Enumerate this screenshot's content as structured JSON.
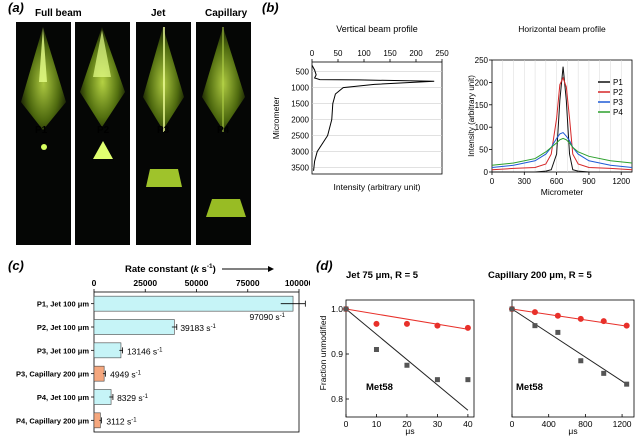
{
  "panel_a": {
    "letter": "(a)",
    "top_labels": [
      "Full beam",
      "Jet",
      "Capillary"
    ],
    "bottom_labels": [
      "P1",
      "P2",
      "P3",
      "P4"
    ]
  },
  "panel_b": {
    "letter": "(b)",
    "vertical": {
      "title": "Vertical beam profile",
      "xlabel": "Intensity (arbitrary unit)",
      "ylabel": "Micrometer",
      "xticks": [
        "0",
        "50",
        "100",
        "150",
        "200",
        "250"
      ],
      "yticks": [
        "0",
        "500",
        "1000",
        "1500",
        "2000",
        "2500",
        "3000",
        "3500"
      ]
    },
    "horizontal": {
      "title": "Horizontal beam profile",
      "xlabel": "Micrometer",
      "ylabel": "Intensity (arbitrary unit)",
      "xticks": [
        "0",
        "300",
        "600",
        "900",
        "1200"
      ],
      "yticks": [
        "0",
        "50",
        "100",
        "150",
        "200",
        "250"
      ],
      "legend": [
        "P1",
        "P2",
        "P3",
        "P4"
      ],
      "colors": [
        "#111111",
        "#d62728",
        "#1f5bd6",
        "#2ca02c"
      ]
    }
  },
  "panel_c": {
    "letter": "(c)",
    "axis_title_prefix": "Rate constant (",
    "axis_title_k": "k",
    "axis_title_unit": " s",
    "axis_title_sup": "-1",
    "axis_title_suffix": ")",
    "xticks": [
      "0",
      "25000",
      "50000",
      "75000",
      "100000"
    ]
  },
  "panel_d": {
    "letter": "(d)",
    "ylabel": "Fraction unmodified",
    "left": {
      "title": "Jet 75 μm, R = 5",
      "sample": "Met58",
      "xlabel": "μs",
      "xticks": [
        "0",
        "10",
        "20",
        "30",
        "40"
      ],
      "yticks": [
        "1.0",
        "0.9",
        "0.8"
      ]
    },
    "right": {
      "title": "Capillary 200 μm, R = 5",
      "sample": "Met58",
      "xlabel": "μs",
      "xticks": [
        "0",
        "400",
        "800",
        "1200"
      ],
      "yticks": [
        "1.0",
        "0.9",
        "0.8"
      ]
    }
  },
  "chart_data": [
    {
      "type": "bar",
      "orientation": "horizontal",
      "title": "Rate constant (k s-1)",
      "categories": [
        "P1, Jet 100 μm",
        "P2, Jet 100 μm",
        "P3, Jet 100 μm",
        "P3, Capillary 200 μm",
        "P4, Jet 100 μm",
        "P4, Capillary 200 μm"
      ],
      "values": [
        97090,
        39183,
        13146,
        4949,
        8329,
        3112
      ],
      "errors": [
        6000,
        1200,
        800,
        600,
        900,
        500
      ],
      "value_labels": [
        "97090 s",
        "39183 s",
        "13146 s",
        "4949 s",
        "8329 s",
        "3112 s"
      ],
      "value_label_sup": "-1",
      "colors": [
        "#c6f4f7",
        "#c6f4f7",
        "#c6f4f7",
        "#f5a77e",
        "#c6f4f7",
        "#f5a77e"
      ],
      "xlim": [
        0,
        100000
      ]
    },
    {
      "type": "line",
      "title": "Vertical beam profile",
      "x": [
        0,
        5,
        8,
        5,
        15,
        90,
        235,
        120,
        60,
        45,
        40,
        38,
        30,
        22,
        10,
        5,
        3
      ],
      "y": [
        300,
        450,
        600,
        700,
        750,
        760,
        800,
        900,
        1000,
        1200,
        1500,
        2000,
        2500,
        2700,
        3000,
        3300,
        3600
      ],
      "xlim": [
        0,
        250
      ],
      "ylim": [
        3700,
        200
      ]
    },
    {
      "type": "line",
      "title": "Horizontal beam profile",
      "x": [
        0,
        200,
        400,
        500,
        550,
        600,
        630,
        660,
        690,
        720,
        750,
        800,
        900,
        1100,
        1300
      ],
      "series": [
        {
          "name": "P1",
          "values": [
            0,
            0,
            0,
            2,
            5,
            40,
            160,
            235,
            160,
            40,
            5,
            2,
            0,
            0,
            0
          ]
        },
        {
          "name": "P2",
          "values": [
            5,
            8,
            10,
            18,
            40,
            120,
            195,
            210,
            190,
            120,
            40,
            18,
            10,
            8,
            5
          ]
        },
        {
          "name": "P3",
          "values": [
            10,
            15,
            25,
            40,
            55,
            75,
            85,
            88,
            80,
            70,
            55,
            40,
            25,
            15,
            10
          ]
        },
        {
          "name": "P4",
          "values": [
            15,
            20,
            30,
            45,
            55,
            65,
            72,
            75,
            72,
            65,
            55,
            45,
            35,
            25,
            20
          ]
        }
      ],
      "xlim": [
        0,
        1300
      ],
      "ylim": [
        0,
        250
      ]
    },
    {
      "type": "scatter",
      "title": "Jet 75 μm, R = 5",
      "series": [
        {
          "values_x": [
            0,
            10,
            20,
            30,
            40
          ],
          "values_y": [
            1.0,
            0.967,
            0.967,
            0.963,
            0.958
          ]
        },
        {
          "values_x": [
            0,
            10,
            20,
            30,
            40
          ],
          "values_y": [
            1.0,
            0.91,
            0.875,
            0.843,
            0.843
          ]
        }
      ],
      "fit_red": [
        [
          0,
          1.0
        ],
        [
          40,
          0.955
        ]
      ],
      "fit_black": [
        [
          0,
          1.0
        ],
        [
          40,
          0.775
        ]
      ],
      "xlim": [
        0,
        42
      ],
      "ylim": [
        0.76,
        1.02
      ]
    },
    {
      "type": "scatter",
      "title": "Capillary 200 μm, R = 5",
      "series": [
        {
          "values_x": [
            0,
            250,
            500,
            750,
            1000,
            1250
          ],
          "values_y": [
            1.0,
            0.993,
            0.985,
            0.978,
            0.973,
            0.963
          ]
        },
        {
          "values_x": [
            0,
            250,
            500,
            750,
            1000,
            1250
          ],
          "values_y": [
            1.0,
            0.963,
            0.948,
            0.885,
            0.857,
            0.833
          ]
        }
      ],
      "fit_red": [
        [
          0,
          1.0
        ],
        [
          1250,
          0.962
        ]
      ],
      "fit_black": [
        [
          0,
          1.0
        ],
        [
          1250,
          0.833
        ]
      ],
      "xlim": [
        0,
        1330
      ],
      "ylim": [
        0.76,
        1.02
      ]
    }
  ]
}
